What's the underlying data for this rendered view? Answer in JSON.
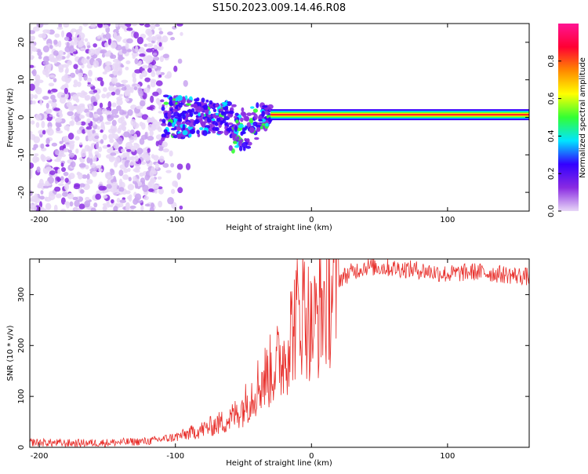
{
  "title": "S150.2023.009.14.46.R08",
  "chart_data": [
    {
      "type": "heatmap",
      "xlabel": "Height of straight line (km)",
      "ylabel": "Frequency (Hz)",
      "xlim": [
        -207,
        160
      ],
      "ylim": [
        -25,
        25
      ],
      "x_ticks": [
        -200,
        -100,
        0,
        100
      ],
      "y_ticks": [
        -20,
        -10,
        0,
        10,
        20
      ],
      "colorbar": {
        "label": "Normalized spectral amplitude",
        "range": [
          0,
          1
        ],
        "ticks": [
          "0.0",
          "0.2",
          "0.4",
          "0.6",
          "0.8"
        ],
        "colors": [
          "#e8d7f7",
          "#8a2be2",
          "#3300ff",
          "#00e5ff",
          "#33ff33",
          "#ffff00",
          "#ff8800",
          "#ff0033",
          "#ff1493"
        ]
      },
      "features": [
        {
          "x": [
            -207,
            -110
          ],
          "freq_spread": [
            -25,
            25
          ],
          "amplitude": "low, scattered"
        },
        {
          "x": [
            -110,
            -30
          ],
          "freq_center": 0,
          "freq_spread": [
            -15,
            8
          ],
          "amplitude": "medium"
        },
        {
          "x": [
            -30,
            160
          ],
          "freq_center": 0.7,
          "amplitude": "high"
        }
      ]
    },
    {
      "type": "line",
      "xlabel": "Height of straight line (km)",
      "ylabel": "SNR (10 * v/v)",
      "xlim": [
        -207,
        160
      ],
      "ylim": [
        0,
        370
      ],
      "x_ticks": [
        -200,
        -100,
        0,
        100
      ],
      "y_ticks": [
        0,
        100,
        200,
        300
      ],
      "color": "#e8302c",
      "series": [
        {
          "x": [
            -207,
            -180,
            -150,
            -120,
            -100,
            -80,
            -60,
            -50,
            -40,
            -30,
            -20,
            -15,
            -10,
            -5,
            0,
            10,
            20,
            30,
            40,
            60,
            80,
            100,
            120,
            140,
            160
          ],
          "values": [
            10,
            8,
            9,
            12,
            20,
            35,
            55,
            80,
            120,
            150,
            180,
            230,
            260,
            280,
            230,
            290,
            330,
            345,
            355,
            352,
            348,
            340,
            345,
            340,
            335
          ]
        }
      ]
    }
  ]
}
